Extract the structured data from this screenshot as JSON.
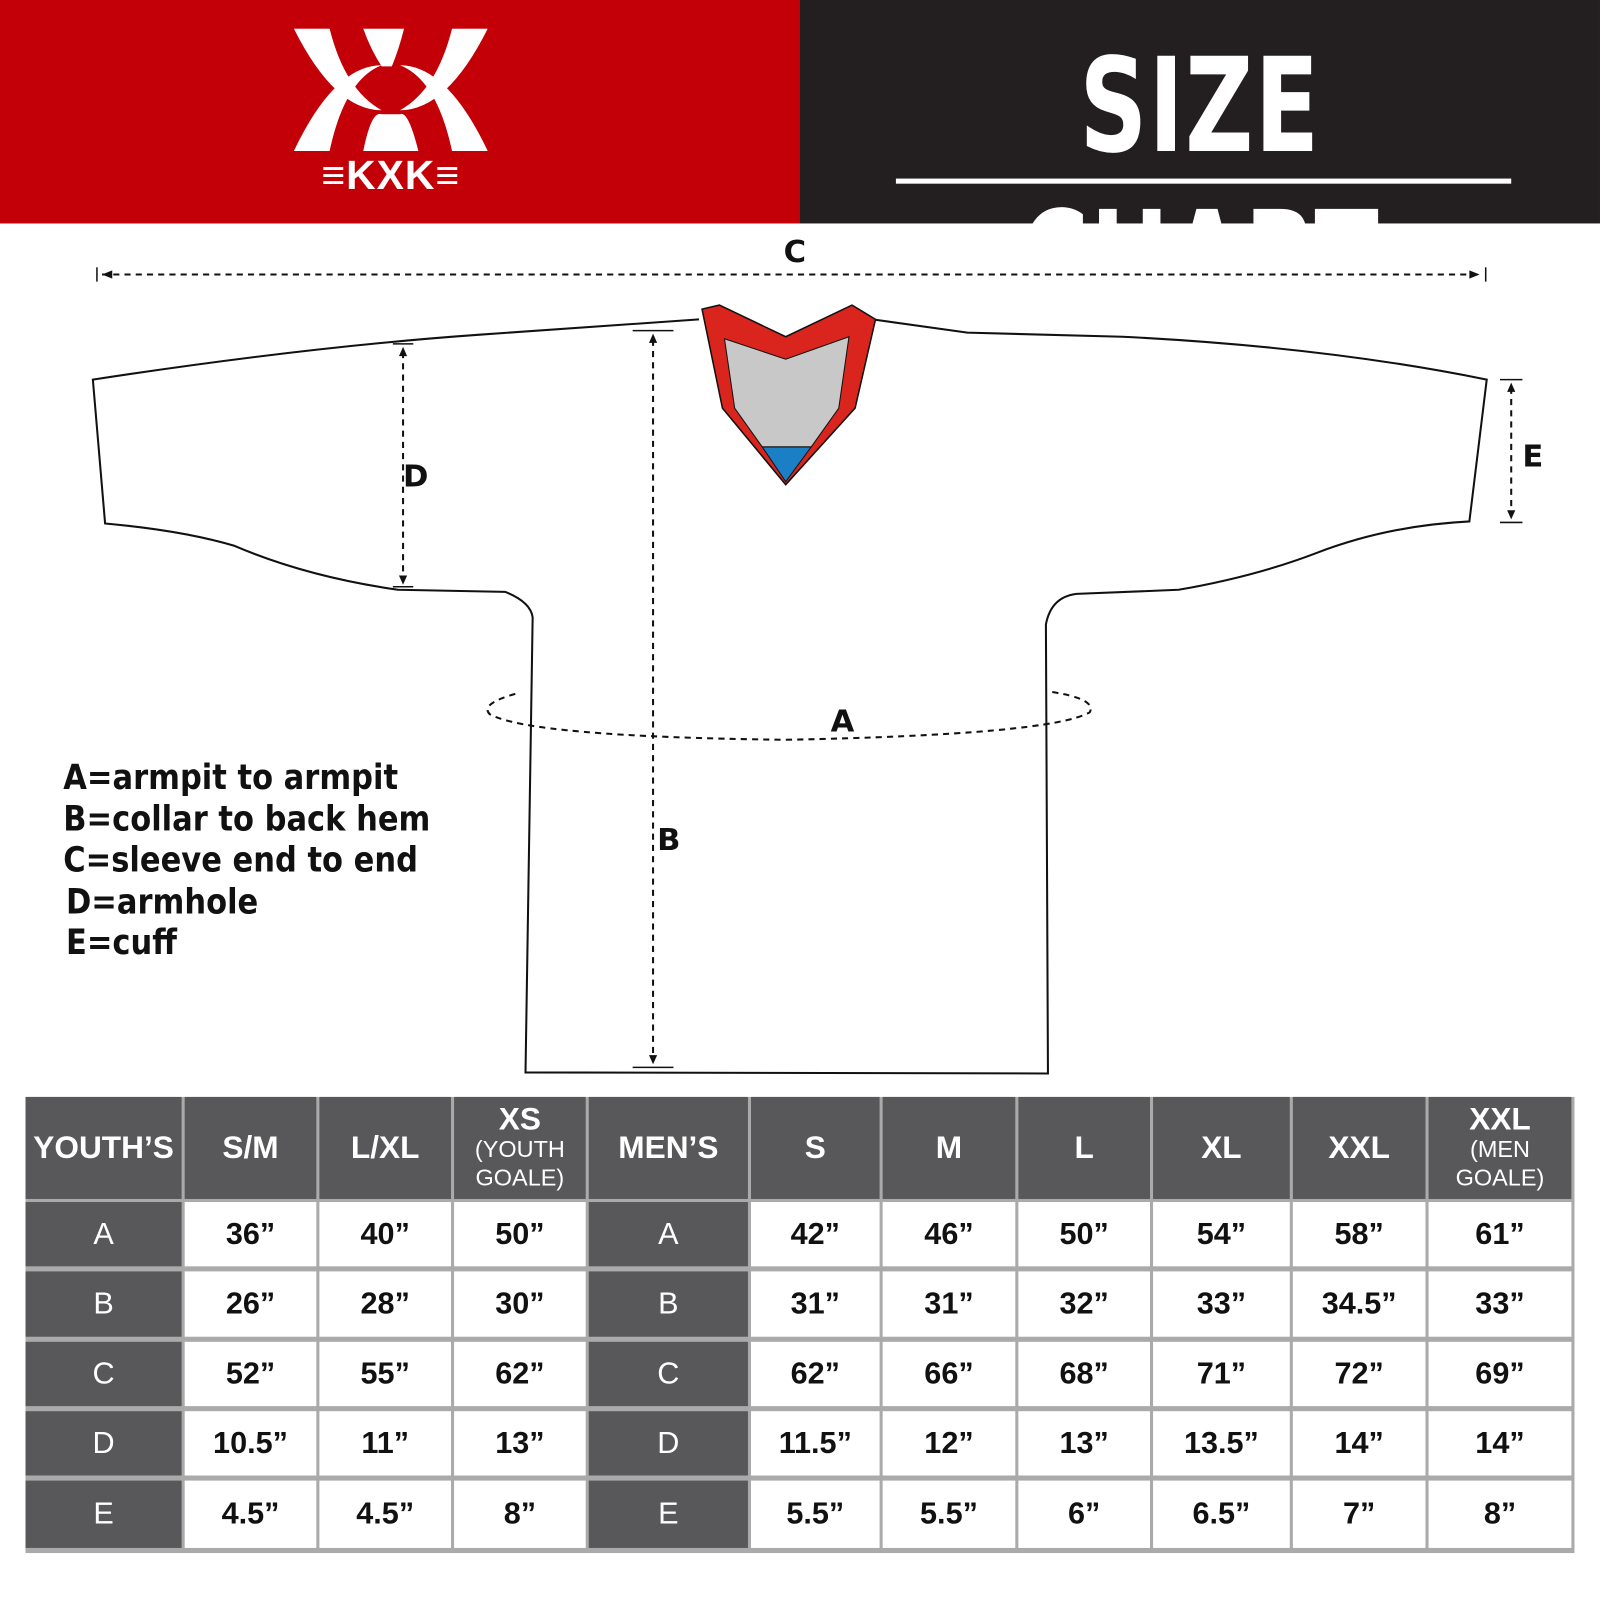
{
  "brand": {
    "logo_text": "≡KXK≡",
    "colors": {
      "red": "#c30008",
      "dark": "#231f20",
      "table_header": "#58585a"
    }
  },
  "header": {
    "title": "SIZE CHART"
  },
  "diagram": {
    "labels": {
      "a": "A",
      "b": "B",
      "c": "C",
      "d": "D",
      "e": "E"
    },
    "legend": [
      "A=armpit to armpit",
      "B=collar to back hem",
      "C=sleeve end to end",
      "D=armhole",
      "E=cuff"
    ]
  },
  "table": {
    "columns": [
      {
        "label": "YOUTH’S",
        "sub": "",
        "kind": "rowhead"
      },
      {
        "label": "S/M",
        "sub": ""
      },
      {
        "label": "L/XL",
        "sub": ""
      },
      {
        "label": "XS",
        "sub": "(YOUTH GOALE)"
      },
      {
        "label": "MEN’S",
        "sub": "",
        "kind": "rowhead"
      },
      {
        "label": "S",
        "sub": ""
      },
      {
        "label": "M",
        "sub": ""
      },
      {
        "label": "L",
        "sub": ""
      },
      {
        "label": "XL",
        "sub": ""
      },
      {
        "label": "XXL",
        "sub": ""
      },
      {
        "label": "XXL",
        "sub": "(MEN GOALE)"
      }
    ],
    "rows": [
      [
        "A",
        "36”",
        "40”",
        "50”",
        "A",
        "42”",
        "46”",
        "50”",
        "54”",
        "58”",
        "61”"
      ],
      [
        "B",
        "26”",
        "28”",
        "30”",
        "B",
        "31”",
        "31”",
        "32”",
        "33”",
        "34.5”",
        "33”"
      ],
      [
        "C",
        "52”",
        "55”",
        "62”",
        "C",
        "62”",
        "66”",
        "68”",
        "71”",
        "72”",
        "69”"
      ],
      [
        "D",
        "10.5”",
        "11”",
        "13”",
        "D",
        "11.5”",
        "12”",
        "13”",
        "13.5”",
        "14”",
        "14”"
      ],
      [
        "E",
        "4.5”",
        "4.5”",
        "8”",
        "E",
        "5.5”",
        "5.5”",
        "6”",
        "6.5”",
        "7”",
        "8”"
      ]
    ]
  }
}
